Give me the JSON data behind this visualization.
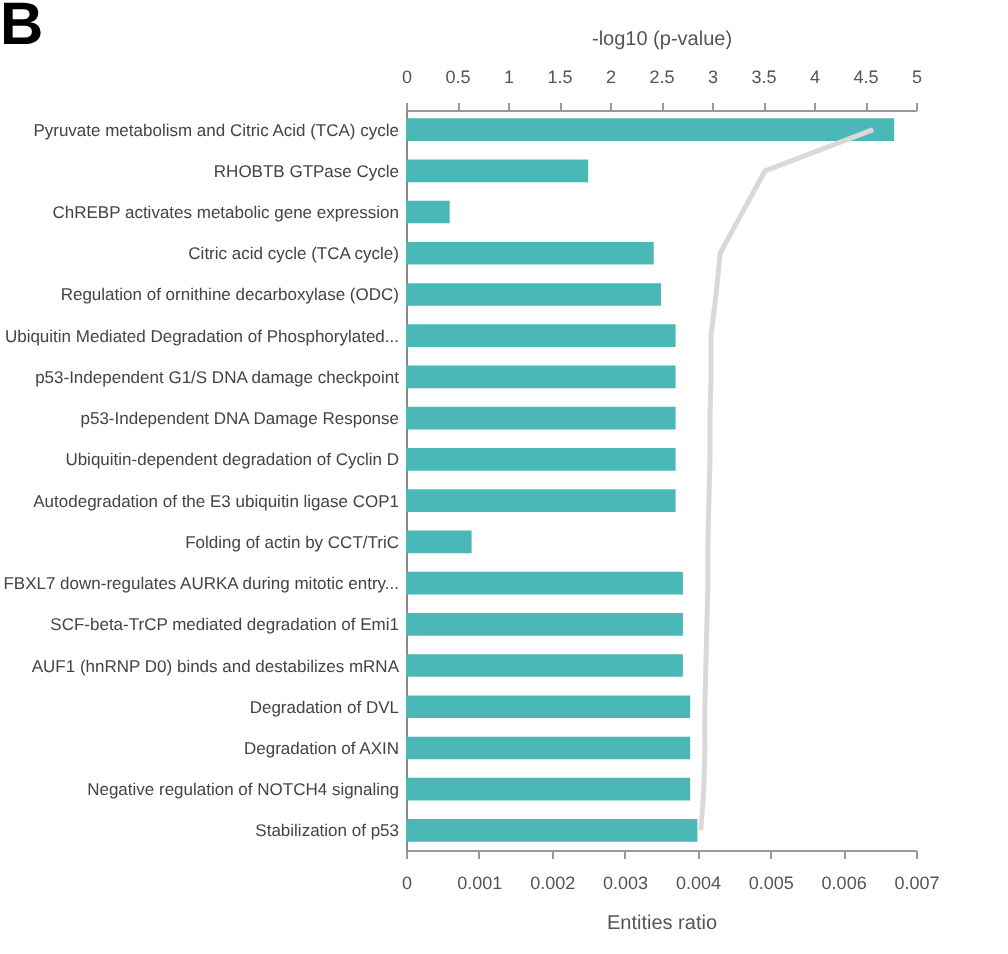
{
  "chart_data": {
    "type": "bar",
    "orientation": "horizontal",
    "xlabel": "Entities ratio",
    "x2label": "-log10 (p-value)",
    "annotations": [
      "B"
    ],
    "categories": [
      "Pyruvate metabolism and Citric Acid (TCA) cycle",
      "RHOBTB GTPase Cycle",
      "ChREBP activates metabolic gene expression",
      "Citric acid cycle (TCA cycle)",
      "Regulation of ornithine decarboxylase (ODC)",
      "Ubiquitin Mediated Degradation of Phosphorylated...",
      "p53-Independent G1/S DNA damage checkpoint",
      "p53-Independent DNA Damage Response",
      "Ubiquitin-dependent degradation of Cyclin D",
      "Autodegradation of the E3 ubiquitin ligase COP1",
      "Folding of actin by CCT/TriC",
      "FBXL7 down-regulates AURKA during mitotic entry...",
      "SCF-beta-TrCP mediated degradation of Emi1",
      "AUF1 (hnRNP D0) binds and destabilizes mRNA",
      "Degradation of DVL",
      "Degradation of AXIN",
      "Negative regulation of NOTCH4 signaling",
      "Stabilization of p53"
    ],
    "series": [
      {
        "color": "#4bb8b8",
        "values": [
          0.0067,
          0.0025,
          0.0006,
          0.0034,
          0.0035,
          0.0037,
          0.0037,
          0.0037,
          0.0037,
          0.0037,
          0.0009,
          0.0038,
          0.0038,
          0.0038,
          0.0039,
          0.0039,
          0.0039,
          0.004
        ]
      },
      {
        "type": "line",
        "axis": "x2",
        "color": "#d9d9d9",
        "values": [
          4.58,
          3.52,
          3.3,
          3.08,
          3.04,
          2.99,
          2.99,
          2.98,
          2.98,
          2.97,
          2.96,
          2.96,
          2.95,
          2.94,
          2.93,
          2.93,
          2.92,
          2.89
        ]
      }
    ],
    "xlim": [
      0,
      0.007
    ],
    "xticks": [
      0,
      0.001,
      0.002,
      0.003,
      0.004,
      0.005,
      0.006,
      0.007
    ],
    "x2lim": [
      0,
      5
    ],
    "x2ticks": [
      0,
      0.5,
      1,
      1.5,
      2,
      2.5,
      3,
      3.5,
      4,
      4.5,
      5
    ],
    "line_style": "solid"
  }
}
